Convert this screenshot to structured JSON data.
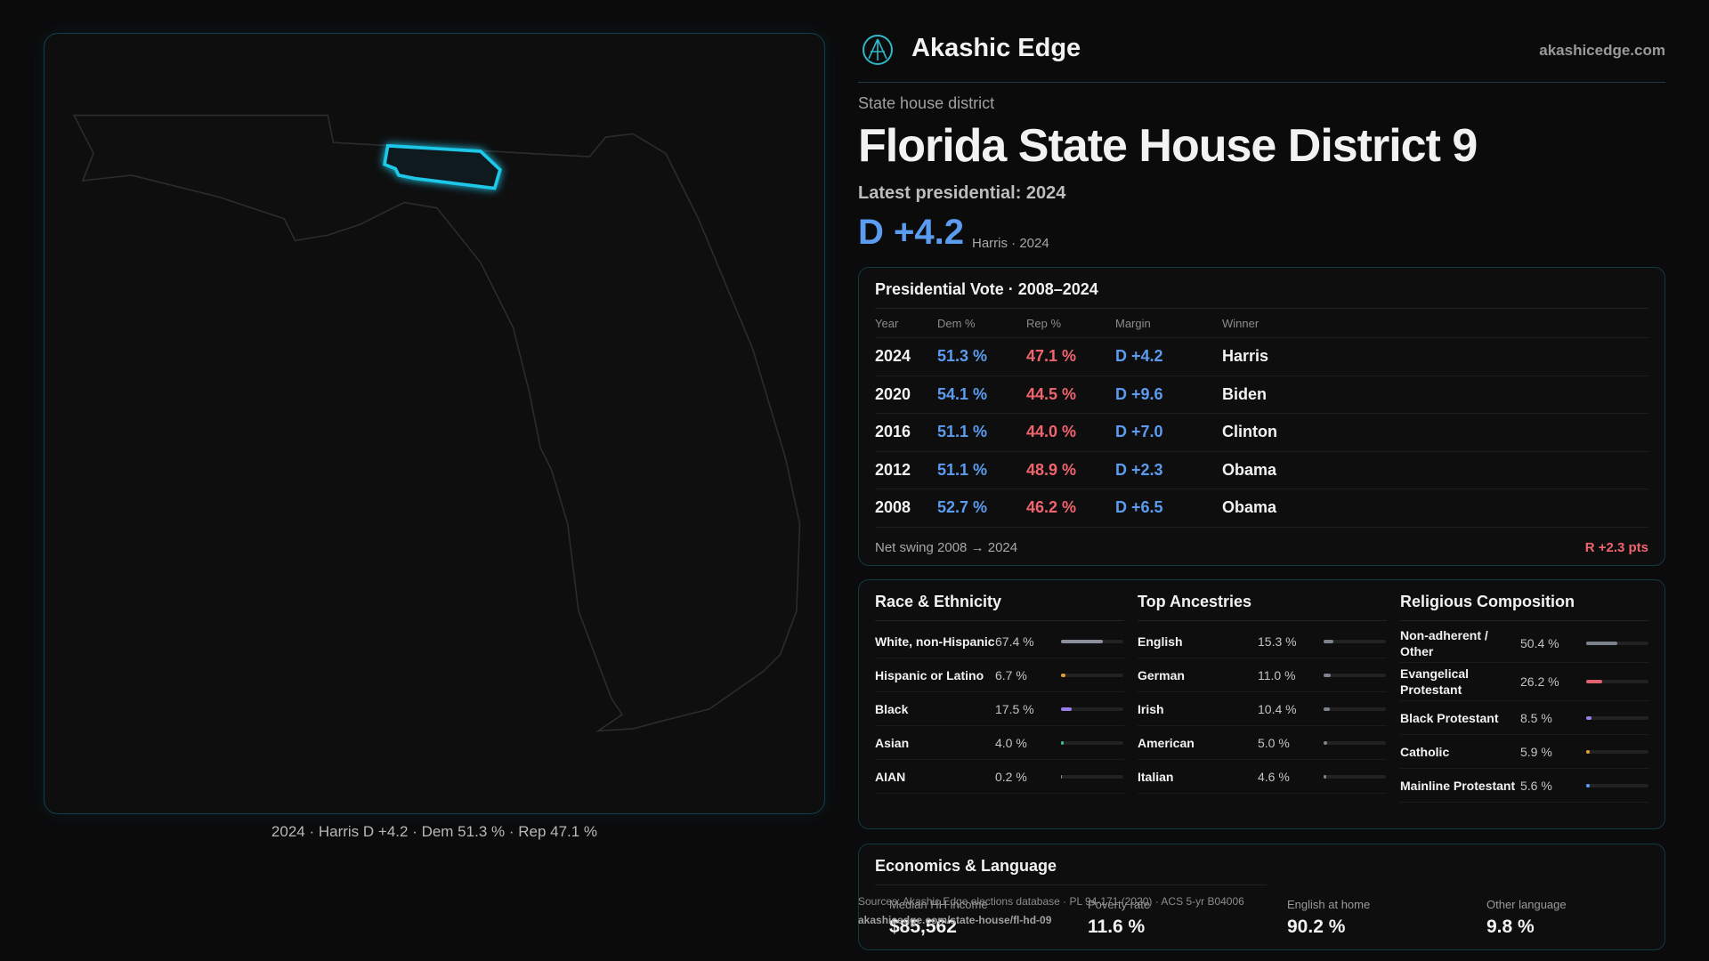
{
  "header": {
    "brand": "Akashic Edge",
    "site": "akashicedge.com"
  },
  "district": {
    "kind": "State house district",
    "title": "Florida State House District 9",
    "latest": "Latest presidential: 2024",
    "margin": "D +4.2",
    "margin_note": "Harris · 2024"
  },
  "map": {
    "caption": "2024 · Harris D +4.2 · Dem 51.3 % · Rep 47.1 %"
  },
  "presidential": {
    "title": "Presidential Vote · 2008–2024",
    "columns": [
      "Year",
      "Dem %",
      "Rep %",
      "Margin",
      "Winner"
    ],
    "rows": [
      [
        "2024",
        "51.3 %",
        "47.1 %",
        "D +4.2",
        "Harris"
      ],
      [
        "2020",
        "54.1 %",
        "44.5 %",
        "D +9.6",
        "Biden"
      ],
      [
        "2016",
        "51.1 %",
        "44.0 %",
        "D +7.0",
        "Clinton"
      ],
      [
        "2012",
        "51.1 %",
        "48.9 %",
        "D +2.3",
        "Obama"
      ],
      [
        "2008",
        "52.7 %",
        "46.2 %",
        "D +6.5",
        "Obama"
      ]
    ],
    "swing_label": "Net swing 2008 → 2024",
    "swing": "R +2.3 pts"
  },
  "race": {
    "title": "Race & Ethnicity",
    "rows": [
      {
        "label": "White, non-Hispanic",
        "value": 67.4,
        "value_label": "67.4 %",
        "color": "#8b919b"
      },
      {
        "label": "Hispanic or Latino",
        "value": 6.7,
        "value_label": "6.7 %",
        "color": "#e0a030"
      },
      {
        "label": "Black",
        "value": 17.5,
        "value_label": "17.5 %",
        "color": "#9a7ee8"
      },
      {
        "label": "Asian",
        "value": 4.0,
        "value_label": "4.0 %",
        "color": "#3fc08a"
      },
      {
        "label": "AIAN",
        "value": 0.2,
        "value_label": "0.2 %",
        "color": "#8b919b"
      }
    ]
  },
  "ancestry": {
    "title": "Top Ancestries",
    "rows": [
      {
        "label": "English",
        "value": 15.3,
        "value_label": "15.3 %",
        "color": "#7d838d"
      },
      {
        "label": "German",
        "value": 11.0,
        "value_label": "11.0 %",
        "color": "#7d838d"
      },
      {
        "label": "Irish",
        "value": 10.4,
        "value_label": "10.4 %",
        "color": "#7d838d"
      },
      {
        "label": "American",
        "value": 5.0,
        "value_label": "5.0 %",
        "color": "#7d838d"
      },
      {
        "label": "Italian",
        "value": 4.6,
        "value_label": "4.6 %",
        "color": "#7d838d"
      }
    ]
  },
  "religion": {
    "title": "Religious Composition",
    "rows": [
      {
        "label": "Non-adherent / Other",
        "value": 50.4,
        "value_label": "50.4 %",
        "color": "#7d838d"
      },
      {
        "label": "Evangelical Protestant",
        "value": 26.2,
        "value_label": "26.2 %",
        "color": "#e06470"
      },
      {
        "label": "Black Protestant",
        "value": 8.5,
        "value_label": "8.5 %",
        "color": "#9a7ee8"
      },
      {
        "label": "Catholic",
        "value": 5.9,
        "value_label": "5.9 %",
        "color": "#e0a030"
      },
      {
        "label": "Mainline Protestant",
        "value": 5.6,
        "value_label": "5.6 %",
        "color": "#5b9cf0"
      }
    ]
  },
  "economics": {
    "title": "Economics & Language",
    "items": [
      {
        "label": "Median HH income",
        "value": "$85,562"
      },
      {
        "label": "Poverty rate",
        "value": "11.6 %"
      },
      {
        "label": "English at home",
        "value": "90.2 %"
      },
      {
        "label": "Other language",
        "value": "9.8 %"
      }
    ]
  },
  "footer": {
    "sources": "Sources: Akashic Edge elections database · PL 94-171 (2020) · ACS 5-yr B04006",
    "url": "akashicedge.com/state-house/fl-hd-09"
  }
}
